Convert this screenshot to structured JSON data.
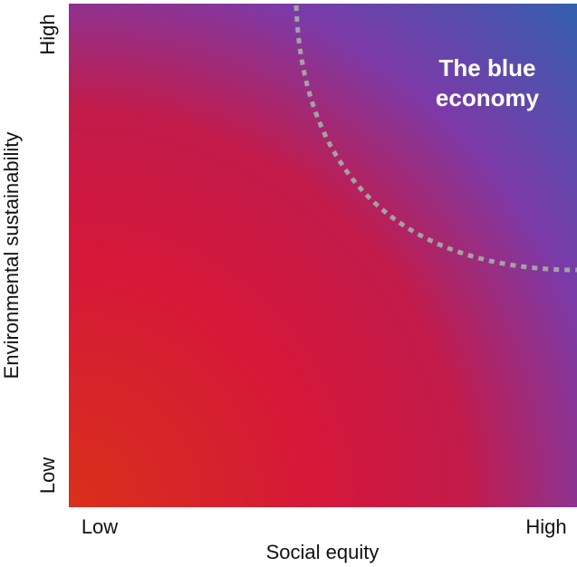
{
  "x_axis": {
    "label": "Social equity",
    "low": "Low",
    "high": "High"
  },
  "y_axis": {
    "label": "Environmental sustainability",
    "low": "Low",
    "high": "High"
  },
  "annotation": {
    "lines": [
      "The blue",
      "economy"
    ]
  }
}
